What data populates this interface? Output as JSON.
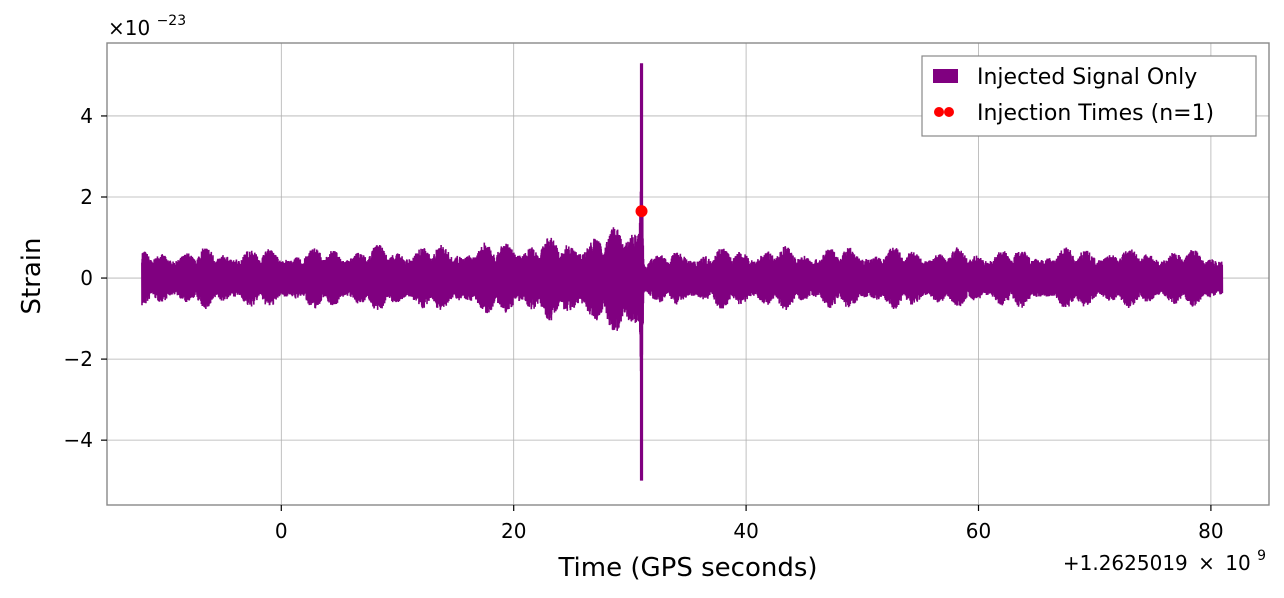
{
  "chart_data": {
    "type": "line",
    "xlabel": "Time (GPS seconds)",
    "ylabel": "Strain",
    "x_offset_text": "+1.2625019",
    "x_offset_times": "×",
    "x_offset_base": "10",
    "x_offset_exp": "9",
    "y_multiplier_prefix": "×10",
    "y_multiplier_exp": "−23",
    "xlim": [
      -15,
      85
    ],
    "ylim": [
      -5.6,
      5.8
    ],
    "x_ticks": [
      0,
      20,
      40,
      60,
      80
    ],
    "x_tick_labels": [
      "0",
      "20",
      "40",
      "60",
      "80"
    ],
    "y_ticks": [
      -4,
      -2,
      0,
      2,
      4
    ],
    "y_tick_labels": [
      "−4",
      "−2",
      "0",
      "2",
      "4"
    ],
    "grid": true,
    "legend_position": "top-right",
    "series": [
      {
        "name": "Injected Signal Only",
        "color": "#800080",
        "x_range": [
          -12,
          81
        ],
        "envelope": [
          {
            "x": -12.0,
            "ymax": 0.7,
            "ymin": -0.7
          },
          {
            "x": -5.0,
            "ymax": 0.8,
            "ymin": -0.8
          },
          {
            "x": 0.0,
            "ymax": 0.75,
            "ymin": -0.75
          },
          {
            "x": 5.0,
            "ymax": 0.8,
            "ymin": -0.8
          },
          {
            "x": 10.0,
            "ymax": 0.85,
            "ymin": -0.85
          },
          {
            "x": 15.0,
            "ymax": 0.85,
            "ymin": -0.85
          },
          {
            "x": 20.0,
            "ymax": 1.0,
            "ymin": -1.0
          },
          {
            "x": 25.0,
            "ymax": 1.05,
            "ymin": -1.1
          },
          {
            "x": 28.0,
            "ymax": 1.2,
            "ymin": -1.3
          },
          {
            "x": 30.0,
            "ymax": 1.5,
            "ymin": -1.6
          },
          {
            "x": 30.8,
            "ymax": 2.0,
            "ymin": -2.0
          },
          {
            "x": 31.0,
            "ymax": 5.3,
            "ymin": -5.0
          },
          {
            "x": 31.2,
            "ymax": 0.6,
            "ymin": -0.6
          },
          {
            "x": 35.0,
            "ymax": 0.75,
            "ymin": -0.75
          },
          {
            "x": 40.0,
            "ymax": 0.8,
            "ymin": -0.8
          },
          {
            "x": 50.0,
            "ymax": 0.8,
            "ymin": -0.8
          },
          {
            "x": 60.0,
            "ymax": 0.75,
            "ymin": -0.75
          },
          {
            "x": 70.0,
            "ymax": 0.8,
            "ymin": -0.8
          },
          {
            "x": 81.0,
            "ymax": 0.7,
            "ymin": -0.7
          }
        ]
      },
      {
        "name": "Injection Times (n=1)",
        "color": "#ff0000",
        "type": "scatter",
        "points": [
          {
            "x": 31.0,
            "y": 1.65
          }
        ]
      }
    ]
  }
}
